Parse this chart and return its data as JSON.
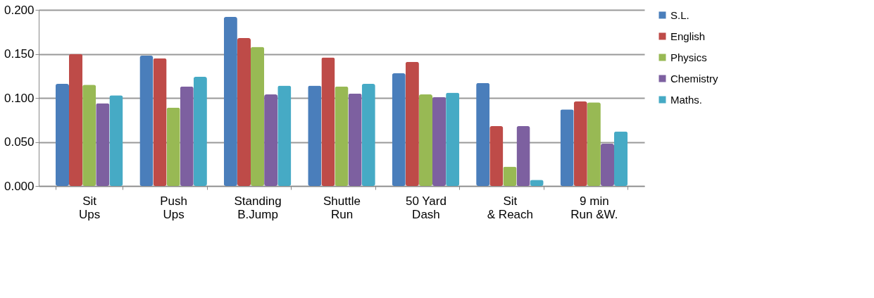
{
  "chart_data": {
    "type": "bar",
    "categories": [
      "Sit\nUps",
      "Push\nUps",
      "Standing\nB.Jump",
      "Shuttle\nRun",
      "50 Yard\nDash",
      "Sit\n& Reach",
      "9 min\nRun &W."
    ],
    "series": [
      {
        "name": "S.L.",
        "color": "#4a7ebb",
        "values": [
          0.116,
          0.148,
          0.192,
          0.114,
          0.128,
          0.117,
          0.087
        ]
      },
      {
        "name": "English",
        "color": "#be4b48",
        "values": [
          0.15,
          0.145,
          0.168,
          0.146,
          0.141,
          0.068,
          0.096
        ]
      },
      {
        "name": "Physics",
        "color": "#98b954",
        "values": [
          0.115,
          0.089,
          0.158,
          0.113,
          0.104,
          0.022,
          0.095
        ]
      },
      {
        "name": "Chemistry",
        "color": "#7d60a0",
        "values": [
          0.094,
          0.113,
          0.104,
          0.105,
          0.101,
          0.068,
          0.048
        ]
      },
      {
        "name": "Maths.",
        "color": "#46aac5",
        "values": [
          0.103,
          0.124,
          0.114,
          0.116,
          0.106,
          0.007,
          0.062
        ]
      }
    ],
    "ylim": [
      0,
      0.2
    ],
    "yticks": [
      {
        "value": 0,
        "label": "0.000"
      },
      {
        "value": 0.05,
        "label": "0.050"
      },
      {
        "value": 0.1,
        "label": "0.100"
      },
      {
        "value": 0.15,
        "label": "0.150"
      },
      {
        "value": 0.2,
        "label": "0.200"
      }
    ],
    "grid": "y",
    "legend": "right"
  }
}
